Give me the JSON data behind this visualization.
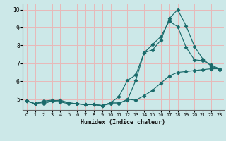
{
  "xlabel": "Humidex (Indice chaleur)",
  "background_color": "#cce8e8",
  "grid_color": "#e8b8b8",
  "line_color": "#1a6b6b",
  "xlim": [
    -0.5,
    23.5
  ],
  "ylim": [
    4.4,
    10.3
  ],
  "yticks": [
    5,
    6,
    7,
    8,
    9,
    10
  ],
  "xticks": [
    0,
    1,
    2,
    3,
    4,
    5,
    6,
    7,
    8,
    9,
    10,
    11,
    12,
    13,
    14,
    15,
    16,
    17,
    18,
    19,
    20,
    21,
    22,
    23
  ],
  "line1_x": [
    0,
    1,
    2,
    3,
    4,
    5,
    6,
    7,
    8,
    9,
    10,
    11,
    12,
    13,
    14,
    15,
    16,
    17,
    18,
    19,
    20,
    21,
    22,
    23
  ],
  "line1_y": [
    4.9,
    4.75,
    4.85,
    4.9,
    4.85,
    4.75,
    4.75,
    4.7,
    4.7,
    4.65,
    4.75,
    4.75,
    5.0,
    4.95,
    5.2,
    5.5,
    5.9,
    6.3,
    6.5,
    6.55,
    6.6,
    6.65,
    6.7,
    6.7
  ],
  "line2_x": [
    0,
    1,
    2,
    3,
    4,
    5,
    6,
    7,
    8,
    9,
    10,
    11,
    12,
    13,
    14,
    15,
    16,
    17,
    18,
    19,
    20,
    21,
    22,
    23
  ],
  "line2_y": [
    4.9,
    4.75,
    4.9,
    4.95,
    4.9,
    4.8,
    4.75,
    4.7,
    4.7,
    4.65,
    4.8,
    5.15,
    6.05,
    6.35,
    7.6,
    8.05,
    8.5,
    9.35,
    9.05,
    7.9,
    7.2,
    7.15,
    6.9,
    6.7
  ],
  "line3_x": [
    0,
    1,
    2,
    3,
    4,
    5,
    6,
    7,
    8,
    9,
    10,
    11,
    12,
    13,
    14,
    15,
    16,
    17,
    18,
    19,
    20,
    21,
    22,
    23
  ],
  "line3_y": [
    4.9,
    4.75,
    4.75,
    4.9,
    4.95,
    4.8,
    4.75,
    4.7,
    4.7,
    4.65,
    4.8,
    4.8,
    4.95,
    6.05,
    7.6,
    7.75,
    8.3,
    9.5,
    10.0,
    9.1,
    7.95,
    7.25,
    6.85,
    6.65
  ]
}
